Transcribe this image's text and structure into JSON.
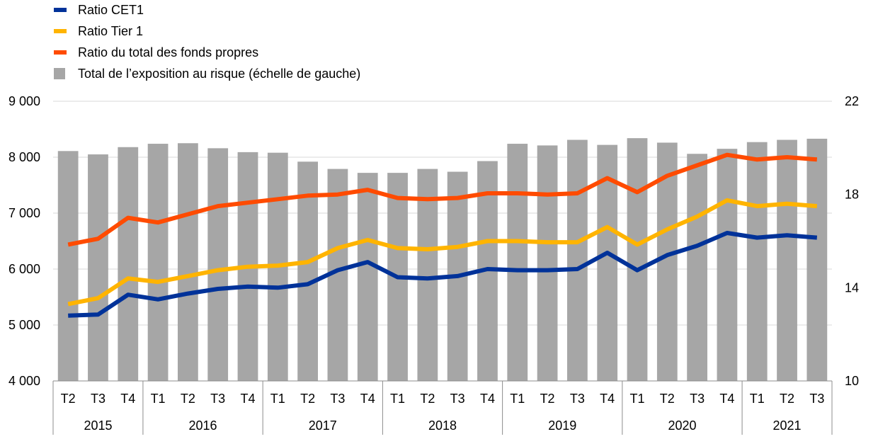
{
  "chart_data": {
    "type": "bar+line",
    "legend": {
      "position": "top-left",
      "items": [
        {
          "label": "Ratio CET1",
          "color": "#003299",
          "marker": "line"
        },
        {
          "label": "Ratio Tier 1",
          "color": "#FFB400",
          "marker": "line"
        },
        {
          "label": "Ratio du total des fonds propres",
          "color": "#FF4B00",
          "marker": "line"
        },
        {
          "label": "Total de l’exposition au risque (échelle de gauche)",
          "color": "#A6A6A6",
          "marker": "square"
        }
      ]
    },
    "quarters": [
      "T2",
      "T3",
      "T4",
      "T1",
      "T2",
      "T3",
      "T4",
      "T1",
      "T2",
      "T3",
      "T4",
      "T1",
      "T2",
      "T3",
      "T4",
      "T1",
      "T2",
      "T3",
      "T4",
      "T1",
      "T2",
      "T3",
      "T4",
      "T1",
      "T2",
      "T3"
    ],
    "years": [
      {
        "label": "2015",
        "count": 3
      },
      {
        "label": "2016",
        "count": 4
      },
      {
        "label": "2017",
        "count": 4
      },
      {
        "label": "2018",
        "count": 4
      },
      {
        "label": "2019",
        "count": 4
      },
      {
        "label": "2020",
        "count": 4
      },
      {
        "label": "2021",
        "count": 3
      }
    ],
    "left_axis": {
      "min": 4000,
      "max": 9000,
      "ticks": [
        4000,
        5000,
        6000,
        7000,
        8000,
        9000
      ],
      "tick_labels": [
        "4 000",
        "5 000",
        "6 000",
        "7 000",
        "8 000",
        "9 000"
      ]
    },
    "right_axis": {
      "min": 10,
      "max": 22,
      "ticks": [
        10,
        14,
        18,
        22
      ],
      "tick_labels": [
        "10",
        "14",
        "18",
        "22"
      ]
    },
    "grid": "horizontal",
    "bars": {
      "name": "Total de l’exposition au risque (échelle de gauche)",
      "axis": "left",
      "color": "#A6A6A6",
      "values": [
        8110,
        8050,
        8180,
        8240,
        8250,
        8160,
        8090,
        8080,
        7920,
        7790,
        7720,
        7720,
        7790,
        7740,
        7930,
        8240,
        8210,
        8310,
        8220,
        8340,
        8260,
        8060,
        8150,
        8270,
        8310,
        8330
      ]
    },
    "series": [
      {
        "name": "Ratio CET1",
        "axis": "right",
        "color": "#003299",
        "values": [
          12.8,
          12.85,
          13.7,
          13.5,
          13.75,
          13.95,
          14.05,
          14.0,
          14.15,
          14.75,
          15.1,
          14.45,
          14.4,
          14.5,
          14.8,
          14.75,
          14.75,
          14.8,
          15.5,
          14.75,
          15.4,
          15.8,
          16.35,
          16.15,
          16.25,
          16.15
        ]
      },
      {
        "name": "Ratio Tier 1",
        "axis": "right",
        "color": "#FFB400",
        "values": [
          13.3,
          13.55,
          14.4,
          14.25,
          14.5,
          14.75,
          14.9,
          14.95,
          15.1,
          15.7,
          16.05,
          15.7,
          15.65,
          15.75,
          16.0,
          16.0,
          15.95,
          15.95,
          16.6,
          15.85,
          16.5,
          17.05,
          17.75,
          17.5,
          17.6,
          17.5
        ]
      },
      {
        "name": "Ratio du total des fonds propres",
        "axis": "right",
        "color": "#FF4B00",
        "values": [
          15.85,
          16.1,
          17.0,
          16.8,
          17.15,
          17.5,
          17.65,
          17.8,
          17.95,
          18.0,
          18.2,
          17.85,
          17.8,
          17.85,
          18.05,
          18.05,
          18.0,
          18.05,
          18.7,
          18.1,
          18.8,
          19.25,
          19.7,
          19.5,
          19.6,
          19.5
        ]
      }
    ]
  }
}
